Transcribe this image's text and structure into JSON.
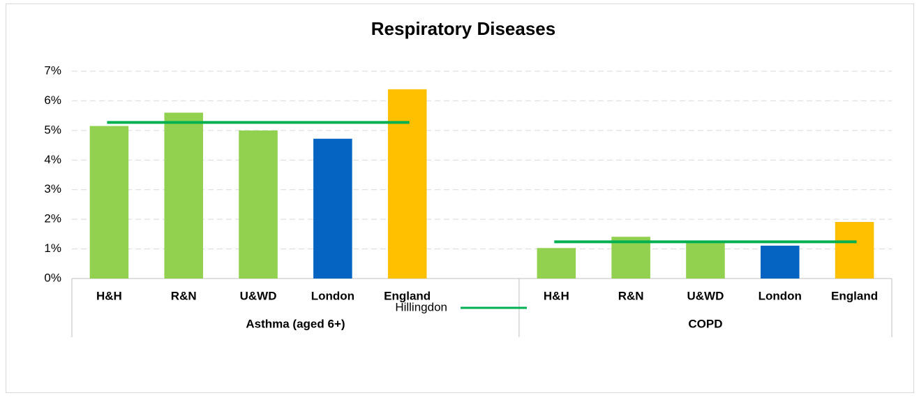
{
  "chart_data": {
    "type": "bar",
    "title": "Respiratory Diseases",
    "ylim": [
      0,
      7
    ],
    "yticks": [
      {
        "value": 0,
        "label": "0%"
      },
      {
        "value": 1,
        "label": "1%"
      },
      {
        "value": 2,
        "label": "2%"
      },
      {
        "value": 3,
        "label": "3%"
      },
      {
        "value": 4,
        "label": "4%"
      },
      {
        "value": 5,
        "label": "5%"
      },
      {
        "value": 6,
        "label": "6%"
      },
      {
        "value": 7,
        "label": "7%"
      }
    ],
    "grid": true,
    "groups": [
      {
        "label": "Asthma (aged 6+)",
        "categories": [
          "H&H",
          "R&N",
          "U&WD",
          "London",
          "England",
          null
        ],
        "values": [
          5.15,
          5.6,
          5.0,
          4.72,
          6.39,
          null
        ],
        "colors": [
          "#92d050",
          "#92d050",
          "#92d050",
          "#0563c1",
          "#ffc000",
          null
        ]
      },
      {
        "label": "COPD",
        "categories": [
          "H&H",
          "R&N",
          "U&WD",
          "London",
          "England"
        ],
        "values": [
          1.03,
          1.41,
          1.25,
          1.11,
          1.91
        ],
        "colors": [
          "#92d050",
          "#92d050",
          "#92d050",
          "#0563c1",
          "#ffc000"
        ]
      }
    ],
    "line": {
      "name": "Hillingdon",
      "color": "#00b050",
      "values": [
        5.27,
        1.24
      ]
    }
  }
}
